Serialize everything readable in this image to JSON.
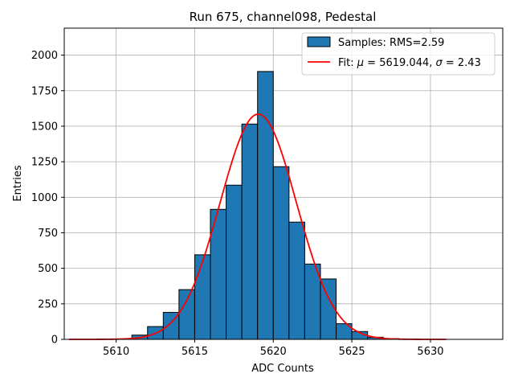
{
  "chart_data": {
    "type": "bar",
    "title": "Run 675, channel098, Pedestal",
    "xlabel": "ADC Counts",
    "ylabel": "Entries",
    "xlim": [
      5606.7,
      5634.6
    ],
    "ylim": [
      0,
      2190
    ],
    "x_ticks": [
      5610,
      5615,
      5620,
      5625,
      5630
    ],
    "y_ticks": [
      0,
      250,
      500,
      750,
      1000,
      1250,
      1500,
      1750,
      2000
    ],
    "grid": true,
    "legend_position": "top-right",
    "histogram": {
      "name": "Samples: RMS=2.59",
      "bin_width": 1,
      "color": "#1f77b4",
      "edgecolor": "#000000",
      "bins": [
        {
          "x0": 5611,
          "value": 30
        },
        {
          "x0": 5612,
          "value": 90
        },
        {
          "x0": 5613,
          "value": 190
        },
        {
          "x0": 5614,
          "value": 350
        },
        {
          "x0": 5615,
          "value": 595
        },
        {
          "x0": 5616,
          "value": 915
        },
        {
          "x0": 5617,
          "value": 1085
        },
        {
          "x0": 5618,
          "value": 1515
        },
        {
          "x0": 5619,
          "value": 1885
        },
        {
          "x0": 5620,
          "value": 1215
        },
        {
          "x0": 5621,
          "value": 825
        },
        {
          "x0": 5622,
          "value": 530
        },
        {
          "x0": 5623,
          "value": 425
        },
        {
          "x0": 5624,
          "value": 110
        },
        {
          "x0": 5625,
          "value": 55
        },
        {
          "x0": 5626,
          "value": 15
        },
        {
          "x0": 5627,
          "value": 5
        }
      ]
    },
    "fit": {
      "name": "Fit: μ = 5619.044, σ = 2.43",
      "legend_prefix": "Fit: ",
      "mu_symbol": "μ",
      "mu_text": " = 5619.044, ",
      "sigma_symbol": "σ",
      "sigma_text": " = 2.43",
      "color": "#ff0000",
      "mu": 5619.044,
      "sigma": 2.43,
      "amplitude": 1585,
      "x_range": [
        5607,
        5631
      ]
    }
  }
}
